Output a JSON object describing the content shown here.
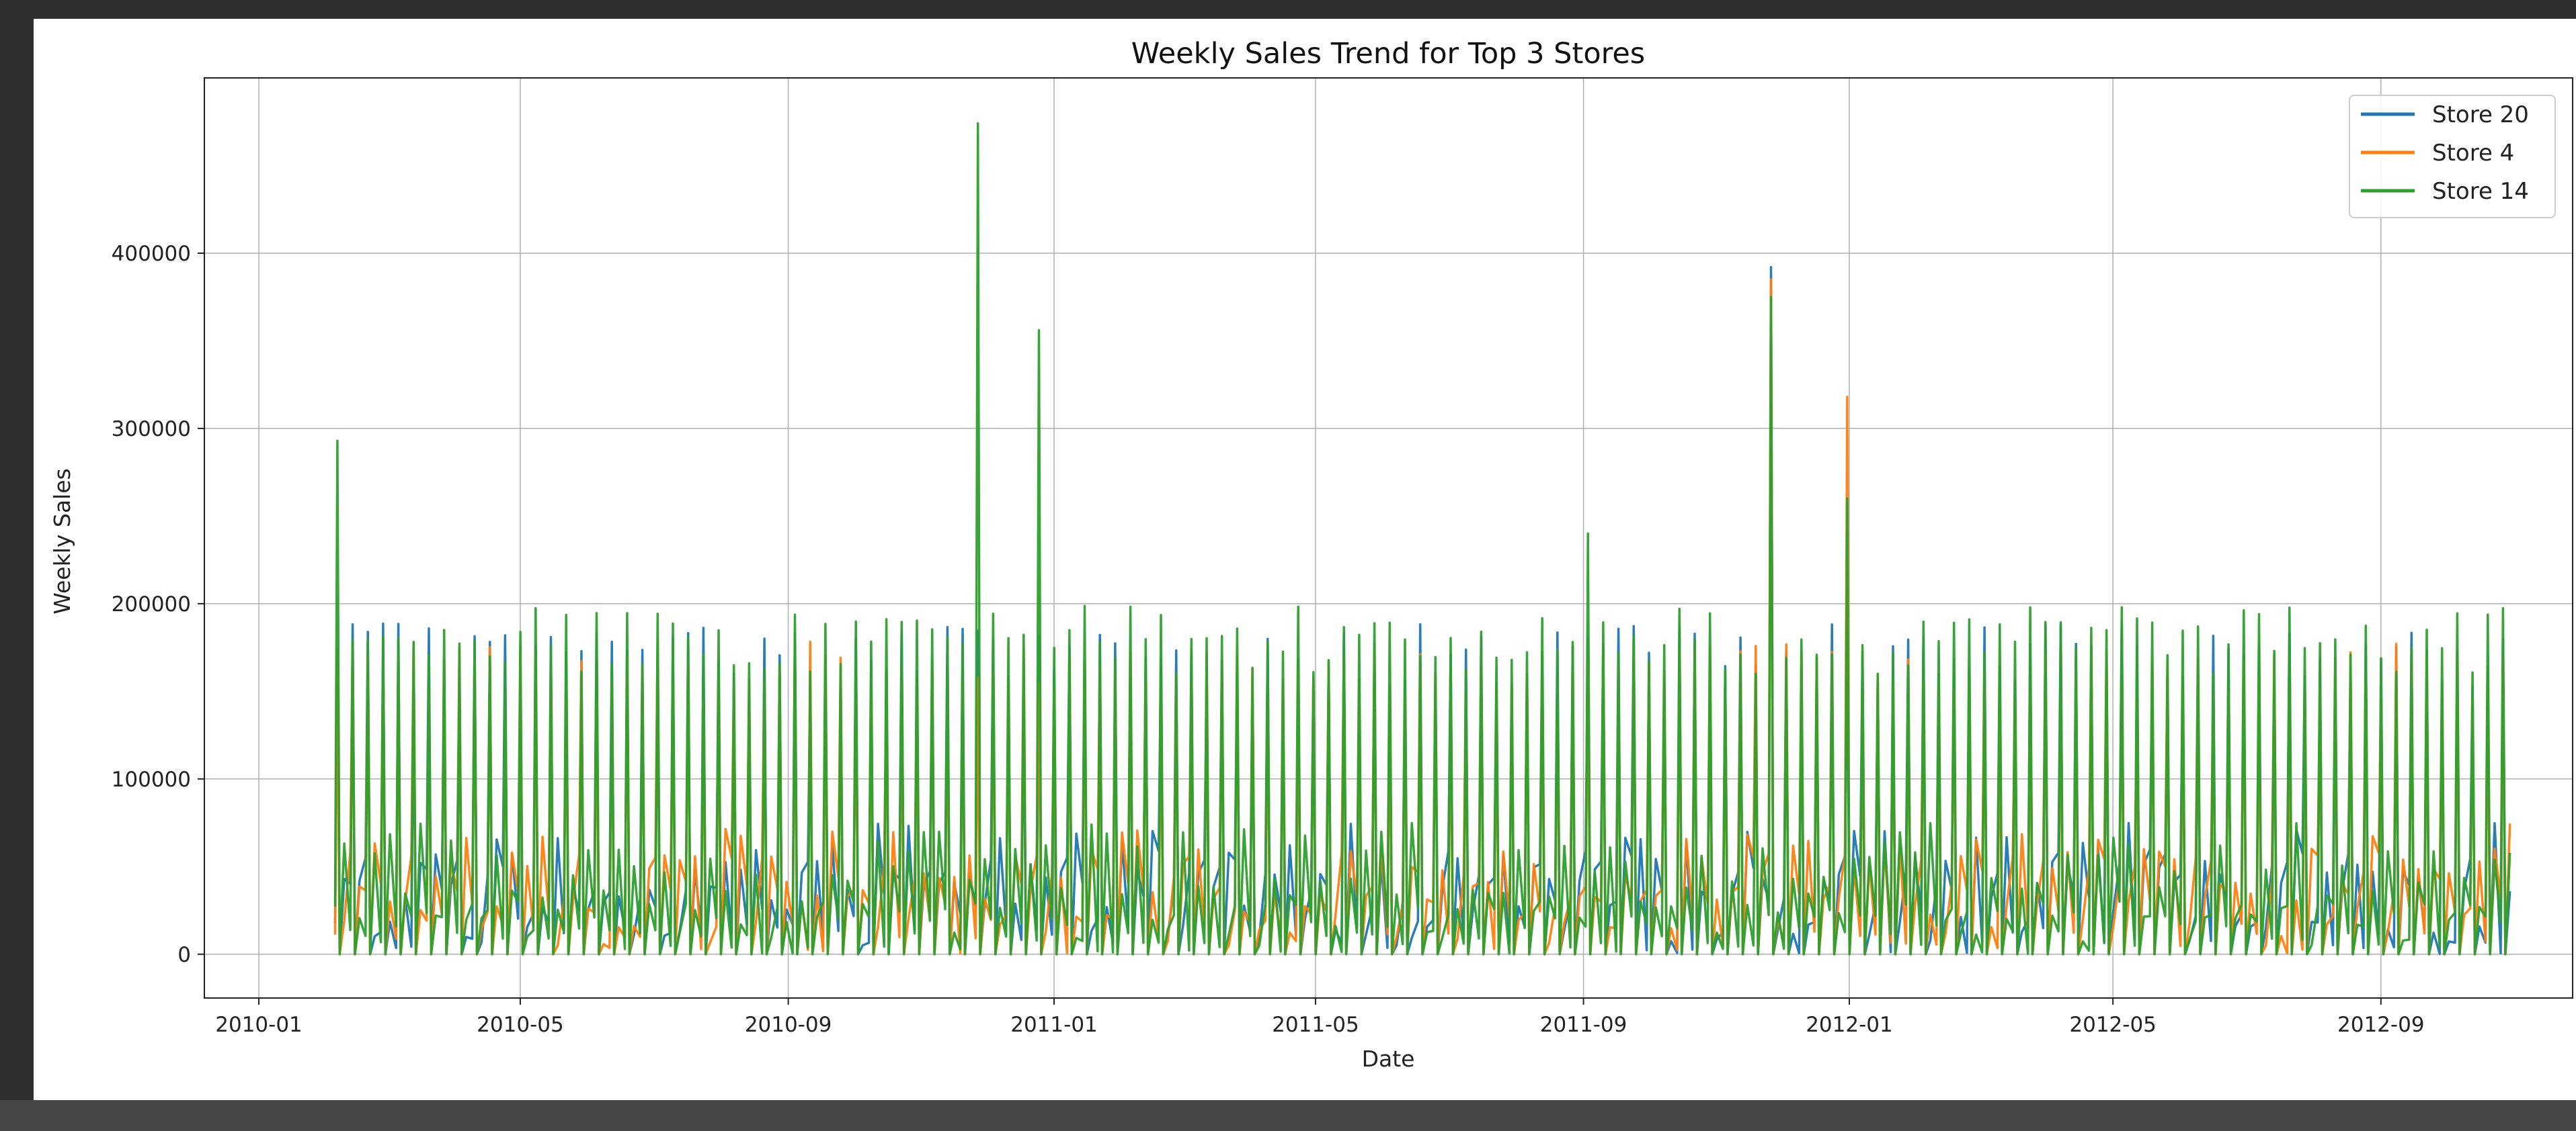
{
  "chart_data": {
    "type": "line",
    "title": "Weekly Sales Trend for Top 3 Stores",
    "xlabel": "Date",
    "ylabel": "Weekly Sales",
    "x_range": [
      "2009-12-07",
      "2012-11-28"
    ],
    "ylim": [
      -25000,
      500000
    ],
    "x_ticks": [
      "2010-01",
      "2010-05",
      "2010-09",
      "2011-01",
      "2011-05",
      "2011-09",
      "2012-01",
      "2012-05",
      "2012-09"
    ],
    "y_ticks": [
      0,
      100000,
      200000,
      300000,
      400000
    ],
    "y_tick_labels": [
      "0",
      "100000",
      "200000",
      "300000",
      "400000"
    ],
    "grid": true,
    "legend_position": "top-right",
    "x_start": "2010-02-05",
    "x_end": "2012-10-26",
    "series": [
      {
        "name": "Store 20",
        "color": "#1f77b4"
      },
      {
        "name": "Store 4",
        "color": "#ff7f0e"
      },
      {
        "name": "Store 14",
        "color": "#2ca02c"
      }
    ],
    "peaks": [
      {
        "date": "2010-02-05",
        "series": "Store 14",
        "value": 293000
      },
      {
        "date": "2010-11-26",
        "series": "Store 14",
        "value": 474000
      },
      {
        "date": "2010-12-24",
        "series": "Store 14",
        "value": 356000
      },
      {
        "date": "2011-11-25",
        "series": "Store 20",
        "value": 392000
      },
      {
        "date": "2011-11-25",
        "series": "Store 4",
        "value": 385000
      },
      {
        "date": "2011-11-25",
        "series": "Store 14",
        "value": 375000
      },
      {
        "date": "2011-12-30",
        "series": "Store 4",
        "value": 318000
      },
      {
        "date": "2011-12-30",
        "series": "Store 14",
        "value": 260000
      },
      {
        "date": "2011-09-02",
        "series": "Store 14",
        "value": 240000
      }
    ],
    "typical_high": {
      "Store 20": 185000,
      "Store 4": 175000,
      "Store 14": 195000
    }
  }
}
